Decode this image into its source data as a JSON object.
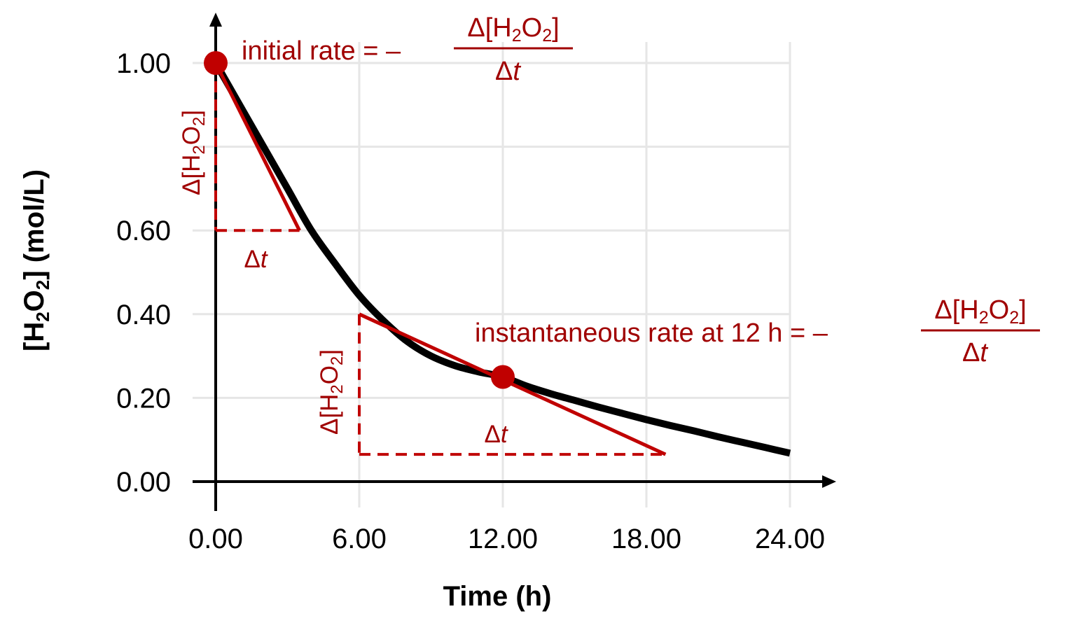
{
  "chart_data": {
    "type": "line",
    "xlabel": "Time (h)",
    "ylabel_parts": {
      "open": "[H",
      "sub1": "2",
      "mid": "O",
      "sub2": "2",
      "close": "] (mol/L)"
    },
    "x_ticks": [
      "0.00",
      "6.00",
      "12.00",
      "18.00",
      "24.00"
    ],
    "x_tick_values": [
      0,
      6,
      12,
      18,
      24
    ],
    "y_ticks": [
      "0.00",
      "0.20",
      "0.40",
      "0.60",
      "1.00"
    ],
    "y_tick_values": [
      0,
      0.2,
      0.4,
      0.6,
      1.0
    ],
    "grid_y_values": [
      0,
      0.2,
      0.4,
      0.6,
      0.8,
      1.0
    ],
    "grid_x_values": [
      0,
      6,
      12,
      18,
      24
    ],
    "xlim": [
      -1,
      26.5
    ],
    "ylim": [
      -0.05,
      1.12
    ],
    "grid": true,
    "series": [
      {
        "x": [
          0,
          1,
          2,
          3,
          4,
          5,
          6,
          7,
          8,
          9,
          10,
          11,
          12,
          13,
          14,
          15,
          16,
          17,
          18,
          19,
          20,
          21,
          22,
          23,
          24
        ],
        "y": [
          1.0,
          0.9,
          0.8,
          0.7,
          0.6,
          0.52,
          0.445,
          0.385,
          0.335,
          0.3,
          0.277,
          0.262,
          0.25,
          0.228,
          0.21,
          0.194,
          0.178,
          0.163,
          0.148,
          0.134,
          0.121,
          0.107,
          0.094,
          0.081,
          0.068
        ]
      }
    ],
    "markers": [
      {
        "x": 0,
        "y": 1.0
      },
      {
        "x": 12,
        "y": 0.25
      }
    ],
    "tangents": [
      {
        "x1": 0,
        "y1": 1.0,
        "x2": 3.5,
        "y2": 0.6
      },
      {
        "x1": 6,
        "y1": 0.4,
        "x2": 18.8,
        "y2": 0.065
      }
    ],
    "dashed": [
      {
        "x1": 0,
        "y1": 1.0,
        "x2": 0,
        "y2": 0.6
      },
      {
        "x1": 0,
        "y1": 0.6,
        "x2": 3.5,
        "y2": 0.6
      },
      {
        "x1": 6,
        "y1": 0.4,
        "x2": 6,
        "y2": 0.065
      },
      {
        "x1": 6,
        "y1": 0.065,
        "x2": 18.8,
        "y2": 0.065
      }
    ],
    "annotations": {
      "initial_label": "initial rate = –",
      "instant_label": "instantaneous rate at 12 h = –",
      "delta_sym": "Δ",
      "conc_open": "[H",
      "conc_sub1": "2",
      "conc_mid": "O",
      "conc_sub2": "2",
      "conc_close": "]",
      "t_sym": "t"
    },
    "colors": {
      "curve": "#000000",
      "accent": "#c00000",
      "text_accent": "#a00000",
      "grid": "#e6e6e6"
    }
  }
}
